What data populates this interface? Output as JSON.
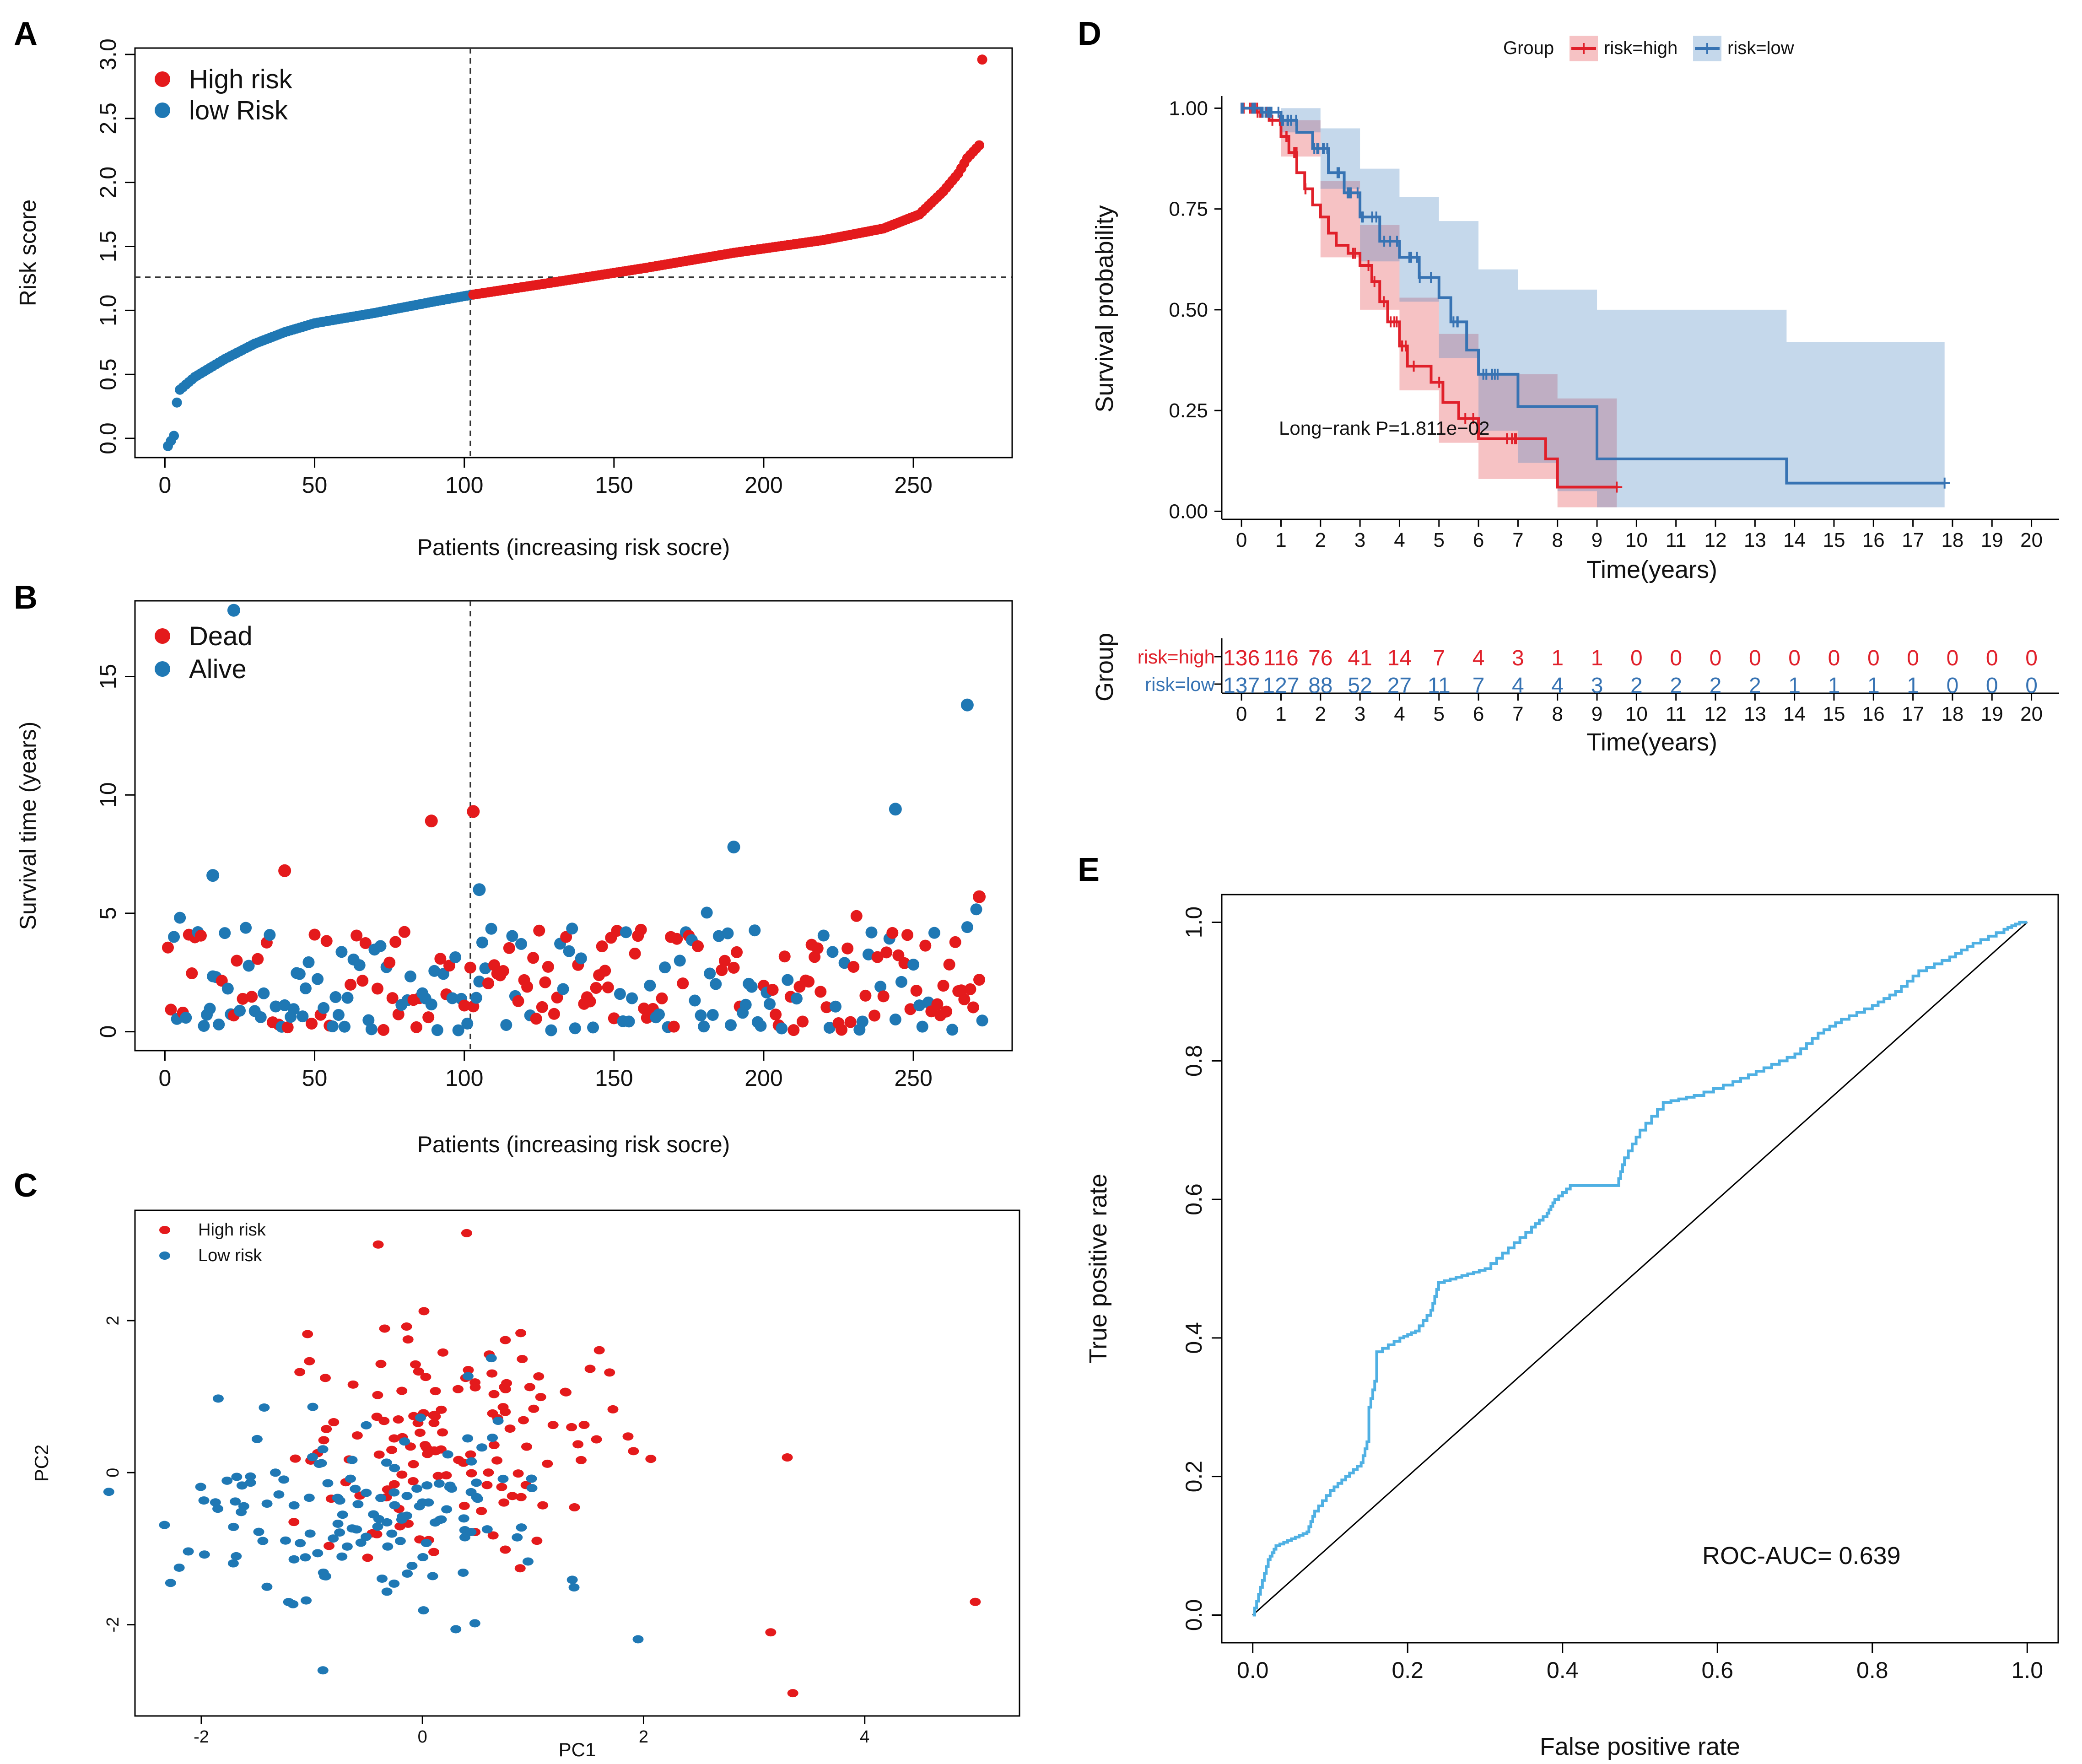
{
  "colors": {
    "high": "#e41a1c",
    "low": "#1f78b4",
    "high_km": "#e0202a",
    "low_km": "#3773b3",
    "roc": "#4fb0e3"
  },
  "chart_data": [
    {
      "panel": "A",
      "type": "scatter",
      "title": "",
      "xlabel": "Patients (increasing risk socre)",
      "ylabel": "Risk score",
      "xlim": [
        -10,
        283
      ],
      "ylim": [
        -0.15,
        3.05
      ],
      "xticks": [
        "0",
        "50",
        "100",
        "150",
        "200",
        "250"
      ],
      "xtick_values": [
        0,
        50,
        100,
        150,
        200,
        250
      ],
      "yticks": [
        "0.0",
        "0.5",
        "1.0",
        "1.5",
        "2.0",
        "2.5",
        "3.0"
      ],
      "ytick_values": [
        0,
        0.5,
        1,
        1.5,
        2,
        2.5,
        3
      ],
      "cutoff_x": 102,
      "cutoff_y": 1.26,
      "n_total": 273,
      "legend": [
        {
          "name": "High risk",
          "color": "high"
        },
        {
          "name": "low Risk",
          "color": "low"
        }
      ],
      "curve_knots": [
        [
          1,
          -0.06
        ],
        [
          2,
          -0.02
        ],
        [
          3,
          0.02
        ],
        [
          4,
          0.28
        ],
        [
          5,
          0.38
        ],
        [
          10,
          0.48
        ],
        [
          15,
          0.55
        ],
        [
          20,
          0.62
        ],
        [
          30,
          0.74
        ],
        [
          40,
          0.83
        ],
        [
          50,
          0.9
        ],
        [
          70,
          0.98
        ],
        [
          90,
          1.07
        ],
        [
          102,
          1.12
        ],
        [
          130,
          1.22
        ],
        [
          160,
          1.33
        ],
        [
          190,
          1.45
        ],
        [
          220,
          1.55
        ],
        [
          240,
          1.64
        ],
        [
          252,
          1.75
        ],
        [
          260,
          1.93
        ],
        [
          265,
          2.07
        ],
        [
          268,
          2.19
        ],
        [
          272,
          2.29
        ],
        [
          273,
          2.96
        ]
      ]
    },
    {
      "panel": "B",
      "type": "scatter",
      "title": "",
      "xlabel": "Patients (increasing risk socre)",
      "ylabel": "Survival time (years)",
      "xlim": [
        -10,
        283
      ],
      "ylim": [
        -0.8,
        18.2
      ],
      "xticks": [
        "0",
        "50",
        "100",
        "150",
        "200",
        "250"
      ],
      "xtick_values": [
        0,
        50,
        100,
        150,
        200,
        250
      ],
      "yticks": [
        "0",
        "5",
        "10",
        "15"
      ],
      "ytick_values": [
        0,
        5,
        10,
        15
      ],
      "cutoff_x": 102,
      "legend": [
        {
          "name": "Dead",
          "color": "high"
        },
        {
          "name": "Alive",
          "color": "low"
        }
      ],
      "notable_points": [
        {
          "x": 23,
          "y": 17.8,
          "status": "Alive"
        },
        {
          "x": 268,
          "y": 13.8,
          "status": "Alive"
        },
        {
          "x": 244,
          "y": 9.4,
          "status": "Alive"
        },
        {
          "x": 103,
          "y": 9.3,
          "status": "Dead"
        },
        {
          "x": 89,
          "y": 8.9,
          "status": "Dead"
        },
        {
          "x": 190,
          "y": 7.8,
          "status": "Alive"
        },
        {
          "x": 40,
          "y": 6.8,
          "status": "Dead"
        },
        {
          "x": 16,
          "y": 6.6,
          "status": "Alive"
        },
        {
          "x": 105,
          "y": 6.0,
          "status": "Alive"
        },
        {
          "x": 272,
          "y": 5.7,
          "status": "Dead"
        }
      ]
    },
    {
      "panel": "C",
      "type": "scatter",
      "title": "",
      "xlabel": "PC1",
      "ylabel": "PC2",
      "xlim": [
        -2.6,
        5.4
      ],
      "ylim": [
        -3.2,
        3.45
      ],
      "xticks": [
        "-2",
        "0",
        "2",
        "4"
      ],
      "xtick_values": [
        -2,
        0,
        2,
        4
      ],
      "yticks": [
        "-2",
        "0",
        "2"
      ],
      "ytick_values": [
        -2,
        0,
        2
      ],
      "legend": [
        {
          "name": "High risk",
          "color": "high"
        },
        {
          "name": "Low risk",
          "color": "low"
        }
      ],
      "notable_points": [
        {
          "x": 5.0,
          "y": -1.7,
          "group": "High risk"
        },
        {
          "x": 3.35,
          "y": -2.9,
          "group": "High risk"
        },
        {
          "x": 3.15,
          "y": -2.1,
          "group": "High risk"
        },
        {
          "x": 3.3,
          "y": 0.2,
          "group": "High risk"
        },
        {
          "x": 0.4,
          "y": 3.15,
          "group": "High risk"
        },
        {
          "x": -0.4,
          "y": 3.0,
          "group": "High risk"
        },
        {
          "x": -0.9,
          "y": -2.6,
          "group": "Low risk"
        },
        {
          "x": -2.2,
          "y": -1.25,
          "group": "Low risk"
        }
      ]
    },
    {
      "panel": "D",
      "type": "line",
      "title": "",
      "xlabel": "Time(years)",
      "ylabel": "Survival probability",
      "xlim": [
        -0.5,
        20.7
      ],
      "ylim": [
        -0.02,
        1.03
      ],
      "xticks": [
        "0",
        "1",
        "2",
        "3",
        "4",
        "5",
        "6",
        "7",
        "8",
        "9",
        "10",
        "11",
        "12",
        "13",
        "14",
        "15",
        "16",
        "17",
        "18",
        "19",
        "20"
      ],
      "xtick_values": [
        0,
        1,
        2,
        3,
        4,
        5,
        6,
        7,
        8,
        9,
        10,
        11,
        12,
        13,
        14,
        15,
        16,
        17,
        18,
        19,
        20
      ],
      "yticks": [
        "0.00",
        "0.25",
        "0.50",
        "0.75",
        "1.00"
      ],
      "ytick_values": [
        0,
        0.25,
        0.5,
        0.75,
        1
      ],
      "legend_title": "Group",
      "legend": [
        {
          "name": "risk=high",
          "color": "high_km"
        },
        {
          "name": "risk=low",
          "color": "low_km"
        }
      ],
      "annotation": "Long−rank P=1.811e−02",
      "series": [
        {
          "name": "risk=high",
          "steps": [
            [
              0,
              1
            ],
            [
              0.4,
              0.99
            ],
            [
              0.7,
              0.97
            ],
            [
              1,
              0.93
            ],
            [
              1.2,
              0.89
            ],
            [
              1.4,
              0.84
            ],
            [
              1.6,
              0.8
            ],
            [
              1.8,
              0.76
            ],
            [
              2,
              0.73
            ],
            [
              2.2,
              0.69
            ],
            [
              2.4,
              0.66
            ],
            [
              2.7,
              0.64
            ],
            [
              3,
              0.61
            ],
            [
              3.3,
              0.57
            ],
            [
              3.5,
              0.52
            ],
            [
              3.7,
              0.47
            ],
            [
              4,
              0.41
            ],
            [
              4.2,
              0.36
            ],
            [
              4.8,
              0.32
            ],
            [
              5.1,
              0.27
            ],
            [
              5.5,
              0.23
            ],
            [
              6,
              0.18
            ],
            [
              7.7,
              0.13
            ],
            [
              8,
              0.06
            ],
            [
              9.5,
              0.06
            ]
          ],
          "upper": [
            [
              0,
              1
            ],
            [
              1,
              0.97
            ],
            [
              2,
              0.82
            ],
            [
              3,
              0.71
            ],
            [
              4,
              0.53
            ],
            [
              5,
              0.44
            ],
            [
              6,
              0.34
            ],
            [
              7,
              0.34
            ],
            [
              8,
              0.28
            ],
            [
              9.5,
              0.28
            ]
          ],
          "lower": [
            [
              0,
              1
            ],
            [
              1,
              0.88
            ],
            [
              2,
              0.63
            ],
            [
              3,
              0.5
            ],
            [
              4,
              0.3
            ],
            [
              5,
              0.17
            ],
            [
              6,
              0.08
            ],
            [
              7,
              0.08
            ],
            [
              8,
              0.01
            ],
            [
              9.5,
              0.01
            ]
          ]
        },
        {
          "name": "risk=low",
          "steps": [
            [
              0,
              1
            ],
            [
              0.5,
              0.99
            ],
            [
              1,
              0.97
            ],
            [
              1.4,
              0.94
            ],
            [
              1.8,
              0.9
            ],
            [
              2.2,
              0.84
            ],
            [
              2.6,
              0.79
            ],
            [
              3,
              0.73
            ],
            [
              3.5,
              0.67
            ],
            [
              4,
              0.63
            ],
            [
              4.5,
              0.58
            ],
            [
              5,
              0.53
            ],
            [
              5.3,
              0.47
            ],
            [
              5.7,
              0.4
            ],
            [
              6,
              0.34
            ],
            [
              7,
              0.26
            ],
            [
              9,
              0.13
            ],
            [
              9.3,
              0.13
            ],
            [
              13.8,
              0.07
            ],
            [
              17.8,
              0.07
            ]
          ],
          "upper": [
            [
              0,
              1
            ],
            [
              1,
              1
            ],
            [
              2,
              0.95
            ],
            [
              3,
              0.85
            ],
            [
              4,
              0.78
            ],
            [
              5,
              0.72
            ],
            [
              6,
              0.6
            ],
            [
              7,
              0.55
            ],
            [
              8,
              0.55
            ],
            [
              9,
              0.5
            ],
            [
              9.3,
              0.5
            ],
            [
              10,
              0.5
            ],
            [
              13.8,
              0.42
            ],
            [
              17.8,
              0.42
            ]
          ],
          "lower": [
            [
              0,
              1
            ],
            [
              1,
              0.94
            ],
            [
              2,
              0.8
            ],
            [
              3,
              0.62
            ],
            [
              4,
              0.52
            ],
            [
              5,
              0.38
            ],
            [
              6,
              0.2
            ],
            [
              7,
              0.12
            ],
            [
              8,
              0.05
            ],
            [
              9,
              0.01
            ],
            [
              17.8,
              0.01
            ]
          ]
        }
      ]
    },
    {
      "panel": "D-table",
      "type": "table",
      "title": "Group",
      "xlabel": "Time(years)",
      "xticks": [
        "0",
        "1",
        "2",
        "3",
        "4",
        "5",
        "6",
        "7",
        "8",
        "9",
        "10",
        "11",
        "12",
        "13",
        "14",
        "15",
        "16",
        "17",
        "18",
        "19",
        "20"
      ],
      "rows": [
        {
          "label": "risk=high",
          "color": "high_km",
          "values": [
            "136",
            "116",
            "76",
            "41",
            "14",
            "7",
            "4",
            "3",
            "1",
            "1",
            "0",
            "0",
            "0",
            "0",
            "0",
            "0",
            "0",
            "0",
            "0",
            "0",
            "0"
          ]
        },
        {
          "label": "risk=low",
          "color": "low_km",
          "values": [
            "137",
            "127",
            "88",
            "52",
            "27",
            "11",
            "7",
            "4",
            "4",
            "3",
            "2",
            "2",
            "2",
            "2",
            "1",
            "1",
            "1",
            "1",
            "0",
            "0",
            "0"
          ]
        }
      ]
    },
    {
      "panel": "E",
      "type": "line",
      "title": "",
      "xlabel": "False positive rate",
      "ylabel": "True positive rate",
      "xlim": [
        -0.04,
        1.04
      ],
      "ylim": [
        -0.04,
        1.04
      ],
      "xticks": [
        "0.0",
        "0.2",
        "0.4",
        "0.6",
        "0.8",
        "1.0"
      ],
      "xtick_values": [
        0,
        0.2,
        0.4,
        0.6,
        0.8,
        1
      ],
      "yticks": [
        "0.0",
        "0.2",
        "0.4",
        "0.6",
        "0.8",
        "1.0"
      ],
      "ytick_values": [
        0,
        0.2,
        0.4,
        0.6,
        0.8,
        1
      ],
      "annotation": "ROC-AUC= 0.639",
      "auc": 0.639,
      "roc_points": [
        [
          0,
          0
        ],
        [
          0.01,
          0.04
        ],
        [
          0.02,
          0.08
        ],
        [
          0.03,
          0.1
        ],
        [
          0.05,
          0.11
        ],
        [
          0.07,
          0.12
        ],
        [
          0.08,
          0.15
        ],
        [
          0.1,
          0.18
        ],
        [
          0.12,
          0.2
        ],
        [
          0.14,
          0.22
        ],
        [
          0.15,
          0.26
        ],
        [
          0.15,
          0.3
        ],
        [
          0.16,
          0.35
        ],
        [
          0.16,
          0.38
        ],
        [
          0.19,
          0.4
        ],
        [
          0.21,
          0.41
        ],
        [
          0.23,
          0.44
        ],
        [
          0.24,
          0.48
        ],
        [
          0.27,
          0.49
        ],
        [
          0.3,
          0.5
        ],
        [
          0.33,
          0.53
        ],
        [
          0.36,
          0.56
        ],
        [
          0.38,
          0.58
        ],
        [
          0.39,
          0.6
        ],
        [
          0.41,
          0.62
        ],
        [
          0.47,
          0.62
        ],
        [
          0.48,
          0.66
        ],
        [
          0.5,
          0.7
        ],
        [
          0.53,
          0.74
        ],
        [
          0.57,
          0.75
        ],
        [
          0.62,
          0.77
        ],
        [
          0.66,
          0.79
        ],
        [
          0.7,
          0.81
        ],
        [
          0.73,
          0.84
        ],
        [
          0.76,
          0.86
        ],
        [
          0.8,
          0.88
        ],
        [
          0.83,
          0.9
        ],
        [
          0.86,
          0.93
        ],
        [
          0.9,
          0.95
        ],
        [
          0.93,
          0.97
        ],
        [
          0.97,
          0.99
        ],
        [
          0.99,
          1.0
        ],
        [
          1,
          1
        ]
      ]
    }
  ]
}
